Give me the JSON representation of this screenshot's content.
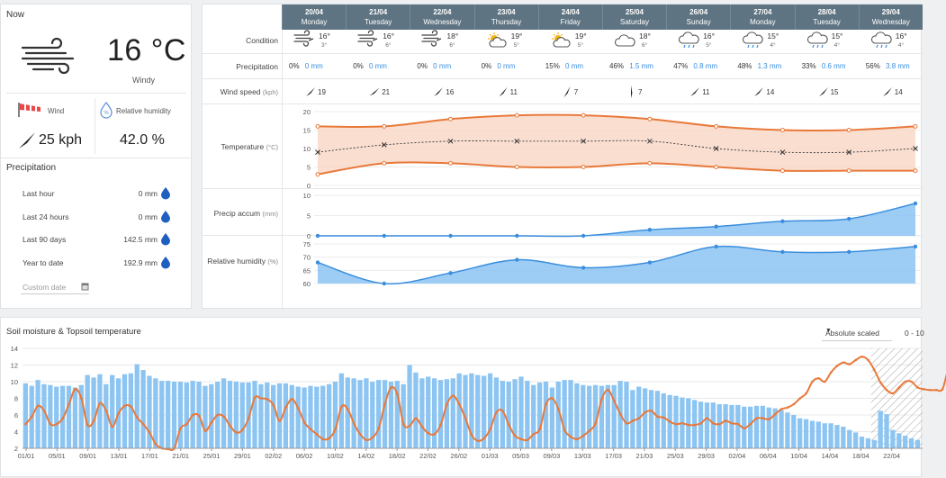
{
  "now": {
    "title": "Now",
    "temperature": "16 °C",
    "condition": "Windy",
    "wind_label": "Wind",
    "wind_value": "25 kph",
    "humidity_label": "Relative humidity",
    "humidity_value": "42.0 %"
  },
  "precipitation": {
    "title": "Precipitation",
    "rows": [
      {
        "label": "Last hour",
        "value": "0 mm"
      },
      {
        "label": "Last 24 hours",
        "value": "0 mm"
      },
      {
        "label": "Last 90 days",
        "value": "142.5 mm"
      },
      {
        "label": "Year to date",
        "value": "192.9 mm"
      }
    ],
    "custom_date_placeholder": "Custom date"
  },
  "forecast": {
    "row_labels": {
      "condition": "Condition",
      "precipitation": "Precipitation",
      "wind": "Wind speed",
      "wind_unit": "(kph)",
      "temperature": "Temperature",
      "temperature_unit": "(°C)",
      "precip_accum": "Precip accum",
      "precip_accum_unit": "(mm)",
      "humidity": "Relative humidity",
      "humidity_unit": "(%)"
    },
    "days": [
      {
        "date": "20/04",
        "weekday": "Monday",
        "icon": "wind-icon",
        "hi": "16°",
        "lo": "3°",
        "prob": "0%",
        "mm": "0 mm",
        "wind": "19",
        "wind_dir": 45
      },
      {
        "date": "21/04",
        "weekday": "Tuesday",
        "icon": "wind-icon",
        "hi": "16°",
        "lo": "6°",
        "prob": "0%",
        "mm": "0 mm",
        "wind": "21",
        "wind_dir": 50
      },
      {
        "date": "22/04",
        "weekday": "Wednesday",
        "icon": "wind-icon",
        "hi": "18°",
        "lo": "6°",
        "prob": "0%",
        "mm": "0 mm",
        "wind": "16",
        "wind_dir": 45
      },
      {
        "date": "23/04",
        "weekday": "Thursday",
        "icon": "partly-cloudy-icon",
        "hi": "19°",
        "lo": "5°",
        "prob": "0%",
        "mm": "0 mm",
        "wind": "11",
        "wind_dir": 40
      },
      {
        "date": "24/04",
        "weekday": "Friday",
        "icon": "partly-cloudy-icon",
        "hi": "19°",
        "lo": "5°",
        "prob": "15%",
        "mm": "0 mm",
        "wind": "7",
        "wind_dir": 30
      },
      {
        "date": "25/04",
        "weekday": "Saturday",
        "icon": "cloud-icon",
        "hi": "18°",
        "lo": "6°",
        "prob": "46%",
        "mm": "1.5 mm",
        "wind": "7",
        "wind_dir": 0
      },
      {
        "date": "26/04",
        "weekday": "Sunday",
        "icon": "rain-cloud-icon",
        "hi": "16°",
        "lo": "5°",
        "prob": "47%",
        "mm": "0.8 mm",
        "wind": "11",
        "wind_dir": 45
      },
      {
        "date": "27/04",
        "weekday": "Monday",
        "icon": "rain-cloud-icon",
        "hi": "15°",
        "lo": "4°",
        "prob": "48%",
        "mm": "1.3 mm",
        "wind": "14",
        "wind_dir": 45
      },
      {
        "date": "28/04",
        "weekday": "Tuesday",
        "icon": "rain-cloud-icon",
        "hi": "15°",
        "lo": "4°",
        "prob": "33%",
        "mm": "0.6 mm",
        "wind": "15",
        "wind_dir": 45
      },
      {
        "date": "29/04",
        "weekday": "Wednesday",
        "icon": "rain-cloud-icon",
        "hi": "16°",
        "lo": "4°",
        "prob": "56%",
        "mm": "3.8 mm",
        "wind": "14",
        "wind_dir": 45
      }
    ]
  },
  "soil": {
    "title": "Soil moisture & Topsoil temperature",
    "dropdown_value": "Absolute scaled",
    "range_label": "0 - 10"
  },
  "colors": {
    "orange": "#e8793a",
    "orange_fill": "#f9d7c6",
    "blue": "#3b8ede",
    "blue_fill": "#8cc4f2",
    "header": "#5f7482"
  },
  "chart_data": [
    {
      "type": "line",
      "title": "Temperature",
      "x": [
        "20/04",
        "21/04",
        "22/04",
        "23/04",
        "24/04",
        "25/04",
        "26/04",
        "27/04",
        "28/04",
        "29/04"
      ],
      "series": [
        {
          "name": "max",
          "values": [
            16,
            16,
            18,
            19,
            19,
            18,
            16,
            15,
            15,
            16
          ]
        },
        {
          "name": "mean",
          "values": [
            9,
            11,
            12,
            12,
            12,
            12,
            10,
            9,
            9,
            10
          ]
        },
        {
          "name": "min",
          "values": [
            3,
            6,
            6,
            5,
            5,
            6,
            5,
            4,
            4,
            4
          ]
        }
      ],
      "ylim": [
        0,
        20
      ],
      "yticks": [
        0,
        5,
        10,
        15,
        20
      ]
    },
    {
      "type": "area",
      "title": "Precip accum",
      "x": [
        "20/04",
        "21/04",
        "22/04",
        "23/04",
        "24/04",
        "25/04",
        "26/04",
        "27/04",
        "28/04",
        "29/04"
      ],
      "values": [
        0,
        0,
        0,
        0,
        0,
        1.5,
        2.3,
        3.6,
        4.2,
        8.0
      ],
      "ylim": [
        0,
        10
      ],
      "yticks": [
        0,
        5,
        10
      ]
    },
    {
      "type": "area",
      "title": "Relative humidity",
      "x": [
        "20/04",
        "21/04",
        "22/04",
        "23/04",
        "24/04",
        "25/04",
        "26/04",
        "27/04",
        "28/04",
        "29/04"
      ],
      "values": [
        68,
        60,
        64,
        69,
        66,
        68,
        74,
        72,
        72,
        74
      ],
      "ylim": [
        60,
        75
      ],
      "yticks": [
        60,
        65,
        70,
        75
      ]
    },
    {
      "type": "bar",
      "title": "Soil moisture & Topsoil temperature",
      "x_ticks": [
        "01/01",
        "05/01",
        "09/01",
        "13/01",
        "17/01",
        "21/01",
        "25/01",
        "29/01",
        "02/02",
        "06/02",
        "10/02",
        "14/02",
        "18/02",
        "22/02",
        "26/02",
        "01/03",
        "05/03",
        "09/03",
        "13/03",
        "17/03",
        "21/03",
        "25/03",
        "29/03",
        "02/04",
        "06/04",
        "10/04",
        "14/04",
        "18/04",
        "22/04"
      ],
      "ylim": [
        2,
        14
      ],
      "yticks": [
        2,
        4,
        6,
        8,
        10,
        12,
        14
      ],
      "series": [
        {
          "name": "soil moisture",
          "values": [
            9.8,
            9.5,
            10.2,
            9.7,
            9.6,
            9.4,
            9.5,
            9.5,
            9.3,
            9.6,
            10.8,
            10.5,
            10.9,
            9.7,
            10.8,
            10.4,
            10.9,
            11.0,
            12.1,
            11.4,
            10.7,
            10.4,
            10.1,
            10.1,
            10.0,
            10.0,
            9.9,
            10.1,
            10.0,
            9.5,
            9.7,
            10.0,
            10.4,
            10.1,
            10.0,
            9.9,
            9.9,
            10.1,
            9.7,
            9.9,
            9.6,
            9.8,
            9.8,
            9.6,
            9.4,
            9.3,
            9.5,
            9.4,
            9.5,
            9.7,
            10.0,
            11.0,
            10.5,
            10.4,
            10.2,
            10.4,
            10.0,
            10.2,
            10.2,
            10.0,
            10.1,
            9.7,
            12.0,
            11.1,
            10.4,
            10.6,
            10.4,
            10.2,
            10.3,
            10.4,
            11.0,
            10.8,
            11.0,
            10.8,
            10.7,
            11.0,
            10.5,
            10.1,
            10.0,
            10.3,
            10.6,
            10.1,
            9.6,
            9.9,
            10.0,
            9.3,
            10.0,
            10.2,
            10.2,
            9.8,
            9.6,
            9.5,
            9.6,
            9.5,
            9.6,
            9.6,
            10.1,
            10.0,
            9.0,
            9.4,
            9.2,
            9.0,
            8.9,
            8.6,
            8.4,
            8.3,
            8.1,
            8.0,
            7.8,
            7.6,
            7.5,
            7.5,
            7.3,
            7.3,
            7.2,
            7.2,
            7.0,
            7.0,
            7.1,
            7.1,
            6.9,
            6.8,
            6.6,
            6.3,
            6.0,
            5.6,
            5.5,
            5.3,
            5.2,
            5.0,
            5.0,
            4.8,
            4.6,
            4.2,
            3.9,
            3.4,
            3.2,
            3.0,
            6.5,
            6.1,
            4.2,
            3.8,
            3.5,
            3.2,
            3.0
          ]
        },
        {
          "name": "topsoil temperature",
          "values": [
            4.9,
            5.8,
            7.1,
            6.5,
            4.9,
            4.9,
            5.6,
            7.3,
            9.1,
            8.0,
            4.8,
            5.3,
            7.4,
            6.5,
            4.6,
            6.2,
            7.1,
            7.0,
            5.7,
            4.9,
            3.9,
            2.5,
            2.0,
            1.9,
            2.0,
            4.4,
            4.9,
            6.0,
            5.9,
            4.1,
            5.1,
            6.0,
            5.8,
            4.7,
            3.9,
            4.2,
            5.6,
            8.1,
            8.0,
            7.9,
            7.2,
            5.3,
            6.9,
            7.9,
            6.8,
            5.1,
            4.3,
            3.7,
            3.1,
            3.2,
            4.3,
            7.0,
            6.7,
            5.0,
            3.7,
            3.0,
            3.3,
            4.4,
            7.3,
            9.3,
            8.5,
            4.9,
            4.7,
            5.6,
            4.6,
            3.8,
            3.7,
            4.8,
            7.3,
            8.3,
            7.3,
            5.6,
            3.6,
            2.9,
            3.2,
            4.3,
            6.3,
            6.5,
            4.8,
            3.5,
            3.1,
            3.0,
            3.7,
            4.3,
            7.3,
            8.0,
            6.7,
            4.2,
            3.4,
            3.1,
            3.5,
            4.1,
            5.0,
            7.9,
            9.0,
            7.7,
            6.1,
            5.0,
            5.3,
            5.6,
            6.3,
            6.5,
            5.8,
            5.7,
            5.2,
            4.9,
            5.0,
            4.8,
            4.8,
            5.0,
            5.6,
            5.0,
            4.9,
            5.3,
            5.0,
            4.9,
            4.4,
            4.9,
            5.6,
            5.6,
            5.5,
            6.1,
            6.7,
            6.9,
            7.3,
            8.0,
            8.6,
            10.0,
            10.4,
            10.0,
            11.1,
            11.9,
            12.3,
            12.1,
            12.6,
            13.0,
            12.6,
            11.4,
            9.9,
            9.0,
            8.6,
            9.3,
            10.0,
            10.0,
            9.3,
            9.1,
            9.0,
            9.0,
            9.1,
            11.5,
            10.8,
            11.3,
            11.8,
            12.1,
            12.5,
            12.6
          ]
        }
      ]
    }
  ]
}
